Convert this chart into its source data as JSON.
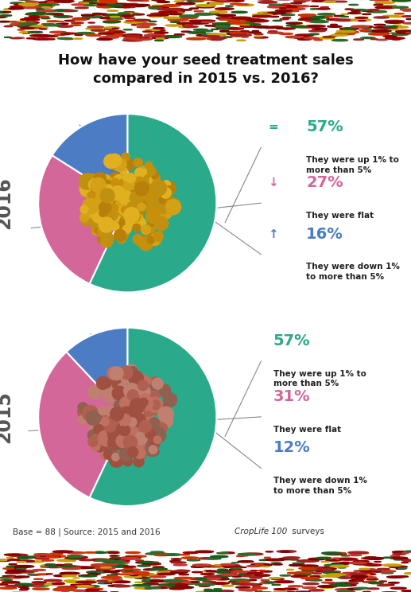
{
  "title": "How have your seed treatment sales\ncompared in 2015 vs. 2016?",
  "title_fontsize": 13,
  "background_color": "#ffffff",
  "charts": [
    {
      "year": "2016",
      "values": [
        57,
        27,
        16
      ],
      "colors": [
        "#2aaa8a",
        "#d4679a",
        "#4b7cc4"
      ],
      "labels": [
        "57%",
        "27%",
        "16%"
      ],
      "descriptions": [
        "They were up 1% to\nmore than 5%",
        "They were flat",
        "They were down 1%\nto more than 5%"
      ],
      "label_colors": [
        "#2aaa8a",
        "#d4679a",
        "#4b7cc4"
      ],
      "symbols": [
        "=",
        "↓",
        "↑"
      ],
      "symbol_colors": [
        "#2aaa8a",
        "#d4679a",
        "#4b7cc4"
      ]
    },
    {
      "year": "2015",
      "values": [
        57,
        31,
        12
      ],
      "colors": [
        "#2aaa8a",
        "#d4679a",
        "#4b7cc4"
      ],
      "labels": [
        "57%",
        "31%",
        "12%"
      ],
      "descriptions": [
        "They were up 1% to\nmore than 5%",
        "They were flat",
        "They were down 1%\nto more than 5%"
      ],
      "label_colors": [
        "#2aaa8a",
        "#d4679a",
        "#4b7cc4"
      ],
      "symbols": [
        "",
        "",
        ""
      ],
      "symbol_colors": [
        "#2aaa8a",
        "#d4679a",
        "#4b7cc4"
      ]
    }
  ],
  "footer_parts": [
    "Base = 88 | Source: 2015 and 2016 ",
    "CropLife 100",
    " surveys"
  ],
  "banner_colors_top": [
    "#8B0000",
    "#c0392b",
    "#7B0000",
    "#a02020",
    "#b03020",
    "#601010"
  ],
  "banner_colors_bot": [
    "#8B0000",
    "#c0392b",
    "#7B0000",
    "#a02020",
    "#b03020",
    "#601010"
  ],
  "seed_colors_2016": [
    "#D4A017",
    "#C8900A",
    "#B8800A",
    "#E0B020",
    "#C09010"
  ],
  "seed_colors_2015": [
    "#B06050",
    "#A05040",
    "#C07060",
    "#906050",
    "#C08070"
  ]
}
